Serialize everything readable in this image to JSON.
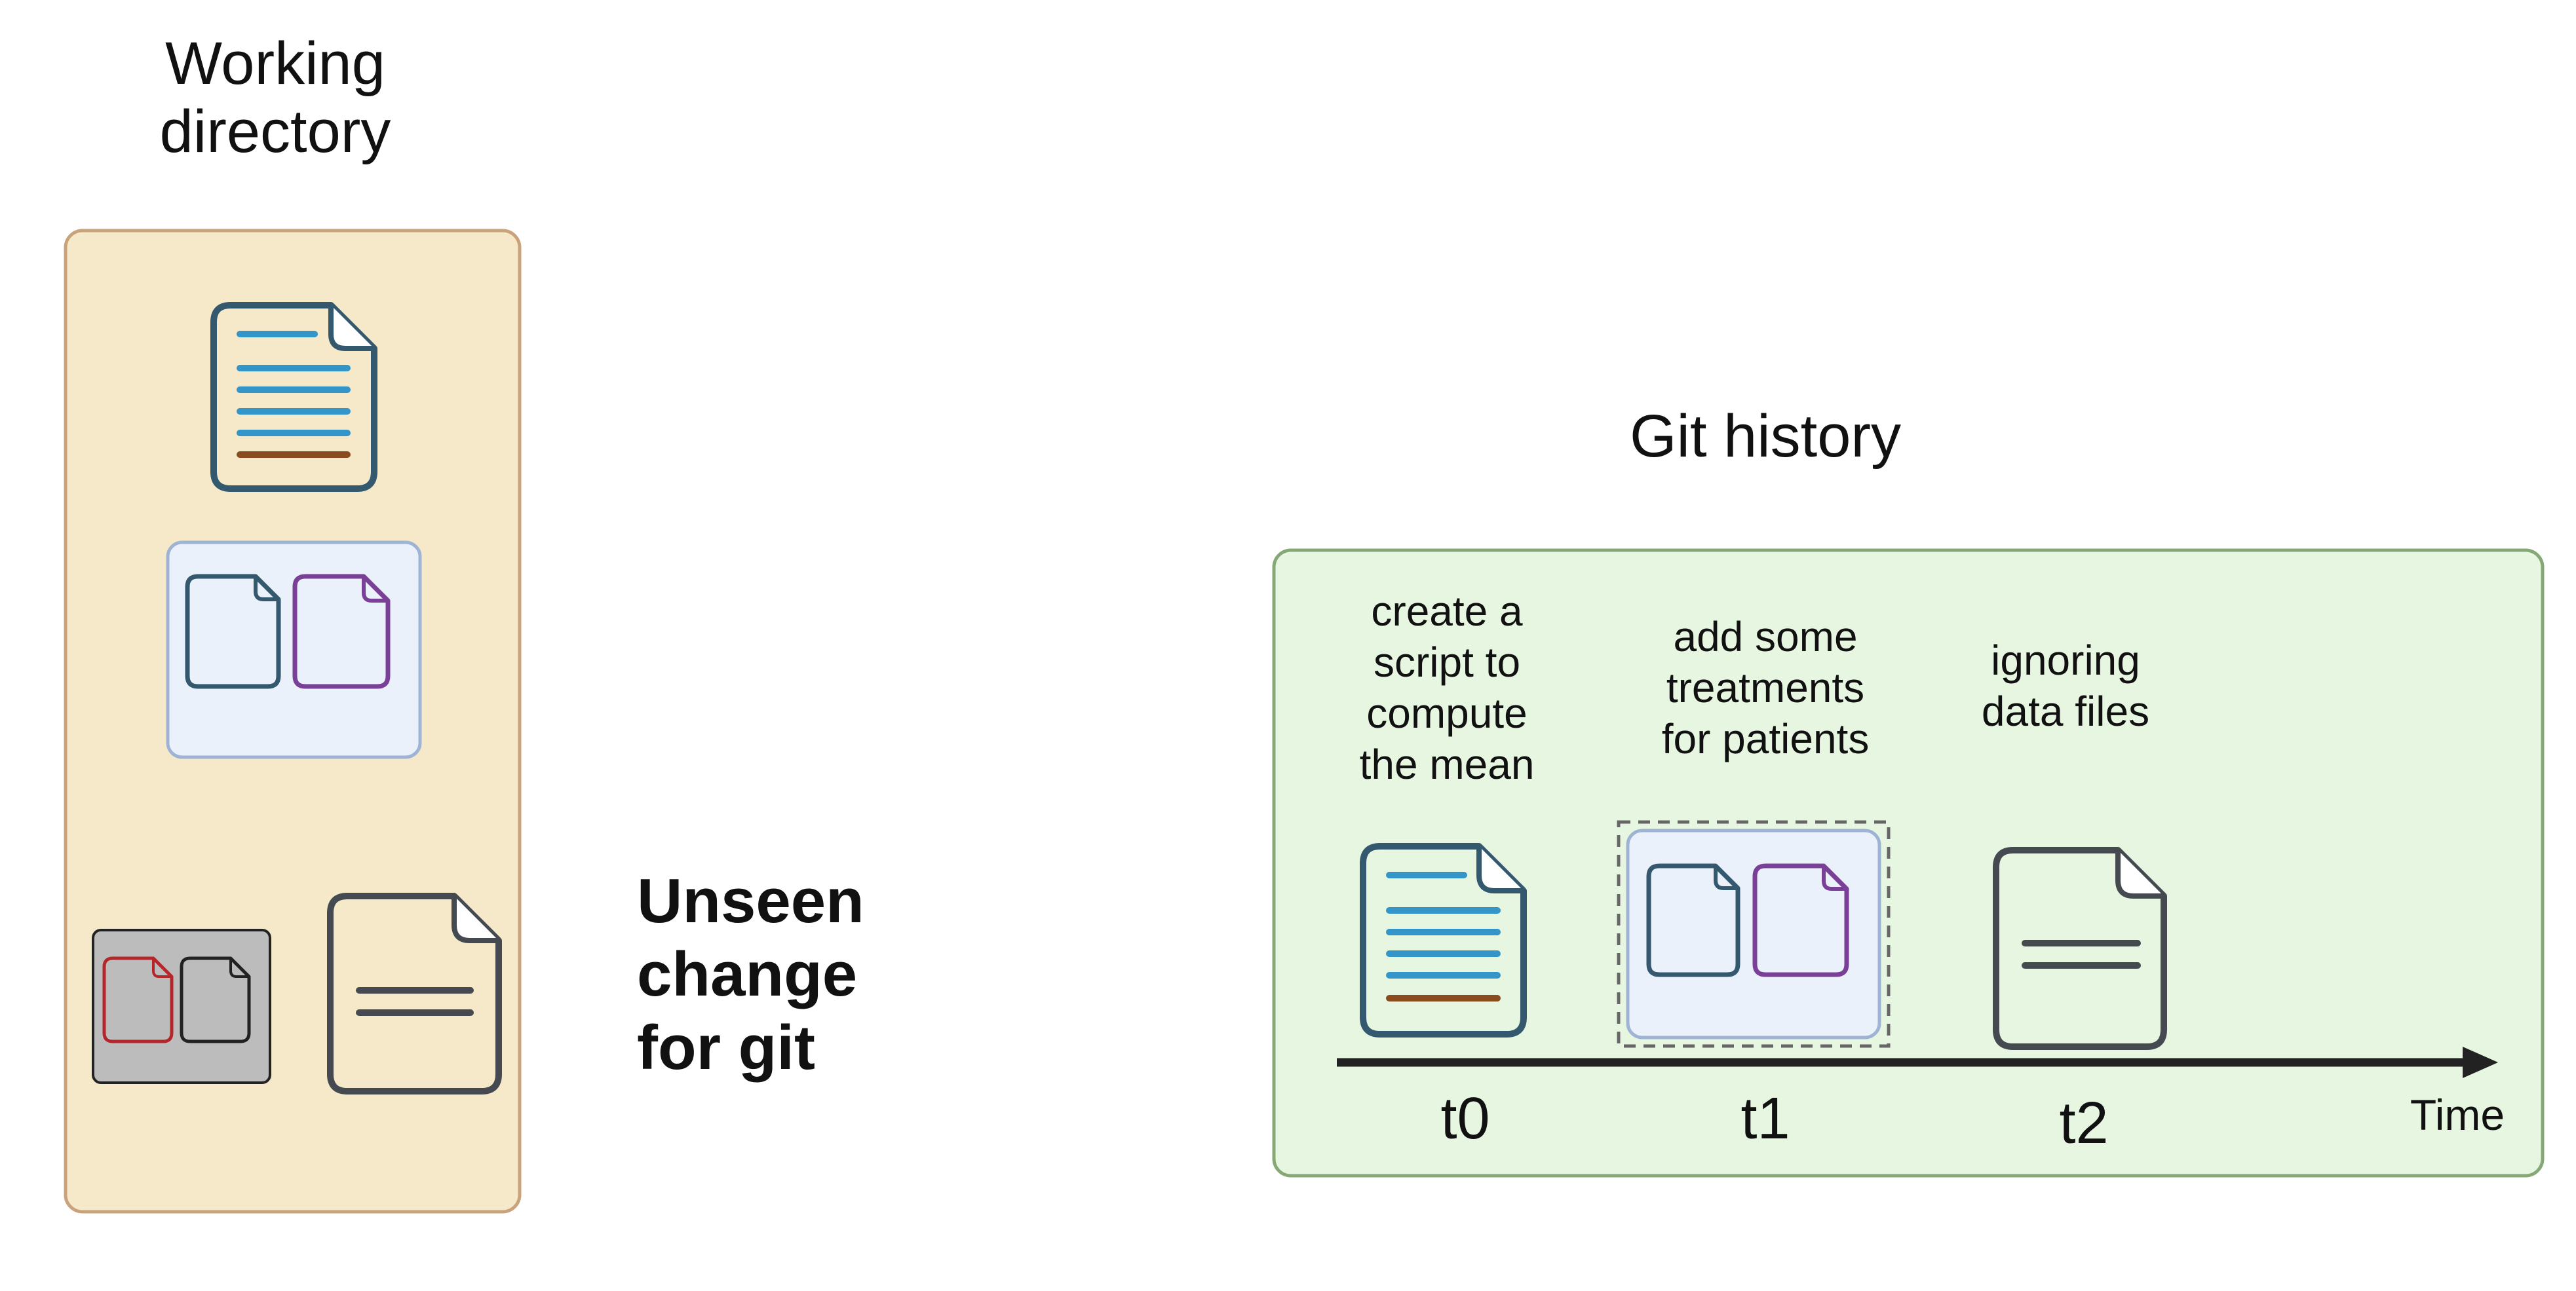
{
  "working_directory": {
    "title_lines": [
      "Working",
      "directory"
    ],
    "icons": [
      "script-file-icon",
      "treatment-files-icon",
      "data-files-icon",
      "plain-file-icon"
    ]
  },
  "unseen_note": {
    "lines": [
      "Unseen",
      "change",
      "for git"
    ]
  },
  "git_history": {
    "title": "Git history",
    "axis_label": "Time",
    "commits": [
      {
        "tick": "t0",
        "caption_lines": [
          "create a",
          "script to",
          "compute",
          "the mean"
        ],
        "icon": "script-file-icon"
      },
      {
        "tick": "t1",
        "caption_lines": [
          "add some",
          "treatments",
          "for patients"
        ],
        "icon": "treatment-files-icon"
      },
      {
        "tick": "t2",
        "caption_lines": [
          "ignoring",
          "data files"
        ],
        "icon": "gitignore-file-icon"
      }
    ]
  },
  "colors": {
    "working_panel_fill": "#f5e9c9",
    "working_panel_border": "#c9a37c",
    "git_panel_fill": "#e7f6e1",
    "git_panel_border": "#86a877",
    "file_stroke": "#34586e",
    "text_line_blue": "#3495c9",
    "text_line_brown": "#8a4b1e",
    "group_fill": "#eaf1fb",
    "group_border": "#9fb4d4",
    "purple_file": "#7a3f97",
    "red_file": "#b5262b",
    "grey_group_fill": "#bcbcbc",
    "axis": "#222222"
  }
}
